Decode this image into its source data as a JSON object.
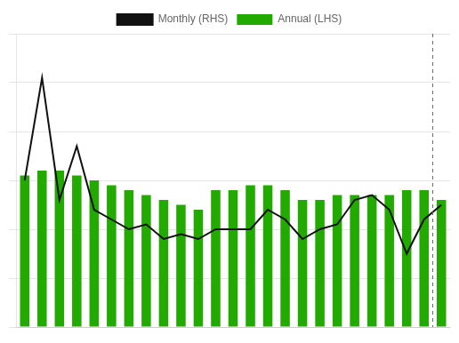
{
  "chart_data": {
    "type": "bar",
    "categories": [
      null,
      null,
      null,
      null,
      null,
      null,
      null,
      null,
      null,
      null,
      null,
      null,
      null,
      null,
      null,
      null,
      null,
      null,
      null,
      null,
      null,
      null,
      null,
      null,
      null
    ],
    "series": [
      {
        "name": "Annual (LHS)",
        "type": "bar",
        "color": "#22aa00",
        "values": [
          3.1,
          3.2,
          3.2,
          3.1,
          3.0,
          2.9,
          2.8,
          2.7,
          2.6,
          2.5,
          2.4,
          2.8,
          2.8,
          2.9,
          2.9,
          2.8,
          2.6,
          2.6,
          2.7,
          2.7,
          2.7,
          2.7,
          2.8,
          2.8,
          2.6
        ]
      },
      {
        "name": "Monthly (RHS)",
        "type": "line",
        "color": "#111111",
        "axis": "y2",
        "values": [
          3.0,
          5.1,
          2.6,
          3.7,
          2.4,
          2.2,
          2.0,
          2.1,
          1.8,
          1.9,
          1.8,
          2.0,
          2.0,
          2.0,
          2.4,
          2.2,
          1.8,
          2.0,
          2.1,
          2.6,
          2.7,
          2.4,
          1.5,
          2.2,
          2.5
        ]
      }
    ],
    "ylim": [
      0,
      6
    ],
    "yticks": [
      0,
      1,
      2,
      3,
      4,
      5,
      6
    ],
    "y2lim": [
      0,
      6
    ],
    "grid": true,
    "legend": "top",
    "tick_labels": false,
    "forecast_index": 24
  }
}
